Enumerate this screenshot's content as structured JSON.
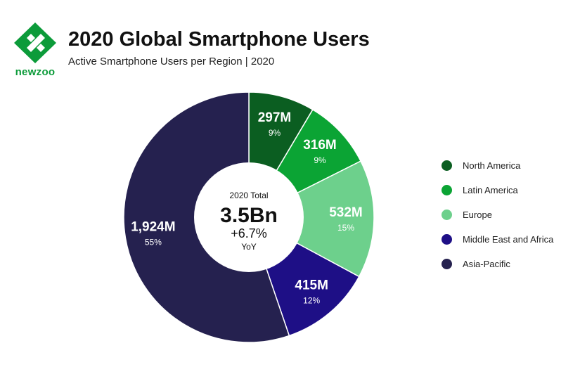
{
  "brand": {
    "name": "newzoo",
    "color": "#0c9b3a"
  },
  "header": {
    "title": "2020 Global Smartphone Users",
    "subtitle": "Active Smartphone Users per Region | 2020"
  },
  "chart_data": {
    "type": "pie",
    "variant": "donut",
    "title": "2020 Global Smartphone Users",
    "subtitle": "Active Smartphone Users per Region | 2020",
    "unit": "M",
    "center": {
      "label": "2020 Total",
      "total": "3.5Bn",
      "growth": "+6.7%",
      "growth_label": "YoY"
    },
    "slices": [
      {
        "name": "North America",
        "value": 297,
        "label": "297M",
        "percent_label": "9%",
        "color": "#0b5e21"
      },
      {
        "name": "Latin America",
        "value": 316,
        "label": "316M",
        "percent_label": "9%",
        "color": "#0ba434"
      },
      {
        "name": "Europe",
        "value": 532,
        "label": "532M",
        "percent_label": "15%",
        "color": "#6dd08c"
      },
      {
        "name": "Middle East and Africa",
        "value": 415,
        "label": "415M",
        "percent_label": "12%",
        "color": "#1e0f86"
      },
      {
        "name": "Asia-Pacific",
        "value": 1924,
        "label": "1,924M",
        "percent_label": "55%",
        "color": "#25214f"
      }
    ],
    "legend_position": "right"
  }
}
